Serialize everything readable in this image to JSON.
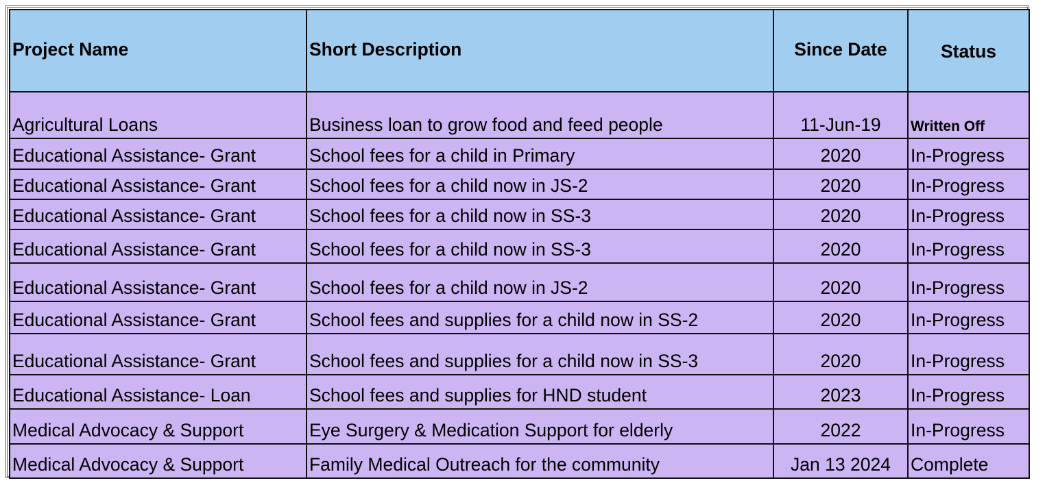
{
  "table": {
    "headers": [
      "Project Name",
      "Short Description",
      "Since Date",
      "Status"
    ],
    "rows": [
      [
        "Agricultural Loans",
        "Business loan to grow food and feed people",
        "11-Jun-19",
        "Written Off"
      ],
      [
        "Educational Assistance- Grant",
        "School fees for a child in Primary",
        "2020",
        "In-Progress"
      ],
      [
        "Educational Assistance- Grant",
        "School fees for a child now in JS-2",
        "2020",
        "In-Progress"
      ],
      [
        "Educational Assistance- Grant",
        "School fees for a child now in SS-3",
        "2020",
        "In-Progress"
      ],
      [
        "Educational Assistance- Grant",
        "School fees for a child now in  SS-3",
        "2020",
        "In-Progress"
      ],
      [
        "Educational Assistance- Grant",
        "School fees for a child now in JS-2",
        "2020",
        "In-Progress"
      ],
      [
        "Educational Assistance- Grant",
        "School fees  and supplies for a child now in SS-2",
        "2020",
        "In-Progress"
      ],
      [
        "Educational Assistance- Grant",
        "School fees  and supplies for a child now in SS-3",
        "2020",
        "In-Progress"
      ],
      [
        "Educational Assistance- Loan",
        "School fees  and supplies for HND student",
        "2023",
        "In-Progress"
      ],
      [
        "Medical Advocacy & Support",
        "Eye Surgery & Medication Support for elderly",
        "2022",
        "In-Progress"
      ],
      [
        "Medical Advocacy & Support",
        "Family Medical Outreach for the community",
        "Jan 13 2024",
        "Complete"
      ]
    ]
  },
  "colors": {
    "header_bg": "#a1cdf0",
    "row_bg": "#cbb5f2",
    "frame_border": "#7a3fa0"
  }
}
